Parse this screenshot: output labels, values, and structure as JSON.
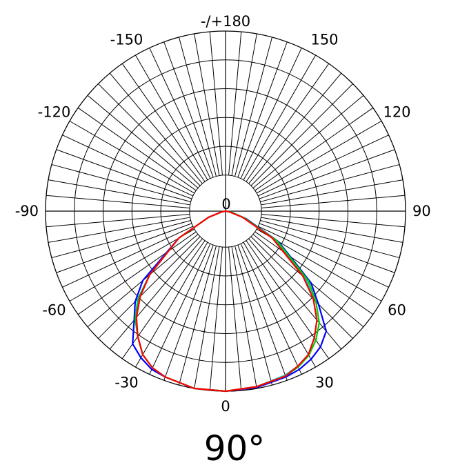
{
  "chart_data": {
    "type": "polar",
    "title": "90°",
    "angle_ticks": [
      {
        "angle": 180,
        "label": "-/+180"
      },
      {
        "angle": -150,
        "label": "-150"
      },
      {
        "angle": 150,
        "label": "150"
      },
      {
        "angle": -120,
        "label": "-120"
      },
      {
        "angle": 120,
        "label": "120"
      },
      {
        "angle": -90,
        "label": "-90"
      },
      {
        "angle": 90,
        "label": "90"
      },
      {
        "angle": -60,
        "label": "-60"
      },
      {
        "angle": 60,
        "label": "60"
      },
      {
        "angle": -30,
        "label": "-30"
      },
      {
        "angle": 30,
        "label": "30"
      },
      {
        "angle": 0,
        "label": "0"
      }
    ],
    "center_label": "0",
    "spoke_step_deg": 5,
    "ring_count": 5,
    "hole_fraction": 0.2,
    "grid": true,
    "colors": {
      "grid": "#000000",
      "series": [
        "#0000ff",
        "#00c0c0",
        "#00cc00",
        "#ff0000"
      ]
    },
    "series": [
      {
        "color": "#0000ff",
        "points": [
          [
            -90,
            0
          ],
          [
            -80,
            0.02
          ],
          [
            -70,
            0.1
          ],
          [
            -60,
            0.3
          ],
          [
            -50,
            0.6
          ],
          [
            -45,
            0.71
          ],
          [
            -40,
            0.79
          ],
          [
            -35,
            0.9
          ],
          [
            -30,
            0.94
          ],
          [
            -25,
            0.97
          ],
          [
            -20,
            0.98
          ],
          [
            -10,
            1.0
          ],
          [
            0,
            1.0
          ],
          [
            10,
            0.995
          ],
          [
            20,
            0.98
          ],
          [
            25,
            0.97
          ],
          [
            30,
            0.95
          ],
          [
            35,
            0.92
          ],
          [
            40,
            0.87
          ],
          [
            45,
            0.73
          ],
          [
            50,
            0.62
          ],
          [
            60,
            0.34
          ],
          [
            70,
            0.12
          ],
          [
            80,
            0.03
          ],
          [
            90,
            0
          ]
        ]
      },
      {
        "color": "#00c0c0",
        "points": [
          [
            -90,
            0
          ],
          [
            -80,
            0.02
          ],
          [
            -70,
            0.1
          ],
          [
            -60,
            0.3
          ],
          [
            -50,
            0.55
          ],
          [
            -45,
            0.69
          ],
          [
            -40,
            0.78
          ],
          [
            -35,
            0.85
          ],
          [
            -30,
            0.92
          ],
          [
            -25,
            0.96
          ],
          [
            -20,
            0.98
          ],
          [
            -10,
            1.0
          ],
          [
            0,
            1.0
          ],
          [
            10,
            0.99
          ],
          [
            20,
            0.97
          ],
          [
            25,
            0.95
          ],
          [
            30,
            0.92
          ],
          [
            35,
            0.86
          ],
          [
            40,
            0.79
          ],
          [
            45,
            0.69
          ],
          [
            50,
            0.58
          ],
          [
            60,
            0.32
          ],
          [
            70,
            0.11
          ],
          [
            80,
            0.03
          ],
          [
            90,
            0
          ]
        ]
      },
      {
        "color": "#00cc00",
        "points": [
          [
            -90,
            0
          ],
          [
            -80,
            0.02
          ],
          [
            -70,
            0.1
          ],
          [
            -60,
            0.3
          ],
          [
            -50,
            0.55
          ],
          [
            -45,
            0.68
          ],
          [
            -40,
            0.78
          ],
          [
            -35,
            0.85
          ],
          [
            -30,
            0.92
          ],
          [
            -25,
            0.96
          ],
          [
            -20,
            0.98
          ],
          [
            -10,
            1.0
          ],
          [
            0,
            1.0
          ],
          [
            10,
            0.99
          ],
          [
            20,
            0.975
          ],
          [
            25,
            0.955
          ],
          [
            30,
            0.925
          ],
          [
            35,
            0.875
          ],
          [
            40,
            0.81
          ],
          [
            45,
            0.71
          ],
          [
            50,
            0.6
          ],
          [
            60,
            0.33
          ],
          [
            70,
            0.11
          ],
          [
            80,
            0.03
          ],
          [
            90,
            0
          ]
        ]
      },
      {
        "color": "#ff0000",
        "points": [
          [
            -90,
            0
          ],
          [
            -80,
            0.02
          ],
          [
            -70,
            0.1
          ],
          [
            -60,
            0.3
          ],
          [
            -50,
            0.55
          ],
          [
            -45,
            0.67
          ],
          [
            -40,
            0.77
          ],
          [
            -35,
            0.85
          ],
          [
            -30,
            0.92
          ],
          [
            -25,
            0.96
          ],
          [
            -20,
            0.98
          ],
          [
            -10,
            1.0
          ],
          [
            0,
            1.0
          ],
          [
            10,
            0.99
          ],
          [
            20,
            0.975
          ],
          [
            25,
            0.95
          ],
          [
            30,
            0.92
          ],
          [
            35,
            0.86
          ],
          [
            40,
            0.79
          ],
          [
            45,
            0.69
          ],
          [
            50,
            0.56
          ],
          [
            60,
            0.3
          ],
          [
            70,
            0.1
          ],
          [
            80,
            0.02
          ],
          [
            90,
            0
          ]
        ]
      }
    ]
  }
}
